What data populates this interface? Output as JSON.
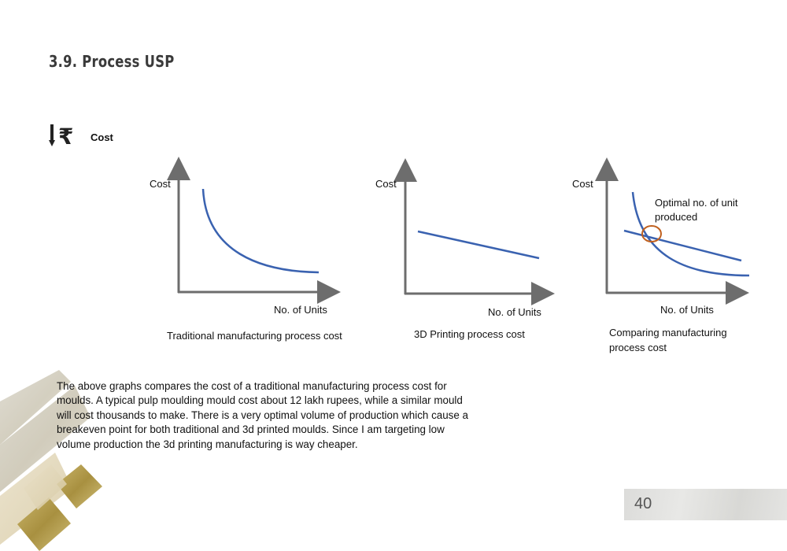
{
  "header": {
    "section_title": "3.9.  Process USP"
  },
  "cost_section": {
    "icon": "rupee-down-icon",
    "label": "Cost"
  },
  "charts": [
    {
      "y_label": "Cost",
      "x_label": "No. of Units",
      "caption": "Traditional manufacturing process cost"
    },
    {
      "y_label": "Cost",
      "x_label": "No. of Units",
      "caption": "3D Printing process cost"
    },
    {
      "y_label": "Cost",
      "x_label": "No. of Units",
      "caption_lines": [
        "Comparing manufacturing",
        "process cost"
      ],
      "annotation_lines": [
        "Optimal no. of unit",
        "produced"
      ]
    }
  ],
  "chart_data": [
    {
      "type": "line",
      "title": "Traditional manufacturing process cost",
      "xlabel": "No. of Units",
      "ylabel": "Cost",
      "trend": "decreasing-curve"
    },
    {
      "type": "line",
      "title": "3D Printing process cost",
      "xlabel": "No. of Units",
      "ylabel": "Cost",
      "trend": "decreasing-linear"
    },
    {
      "type": "line",
      "title": "Comparing manufacturing process cost",
      "xlabel": "No. of Units",
      "ylabel": "Cost",
      "annotation": "Optimal no. of unit produced",
      "trend": "curve-intersects-line"
    }
  ],
  "body": {
    "lines": [
      "The above graphs compares the cost of a traditional manufacturing process cost for",
      "moulds. A typical pulp moulding mould cost about 12 lakh rupees, while a similar mould",
      "will cost thousands to make.  There is a very optimal volume of production which cause a",
      "breakeven point for both traditional and 3d printed moulds. Since I am targeting low",
      "volume production the 3d printing manufacturing is way cheaper."
    ]
  },
  "footer": {
    "page_number": "40"
  },
  "colors": {
    "axis": "#6d6d6d",
    "curve": "#3a62b0",
    "highlight": "#c0601e",
    "gold": "#b8a14a"
  }
}
